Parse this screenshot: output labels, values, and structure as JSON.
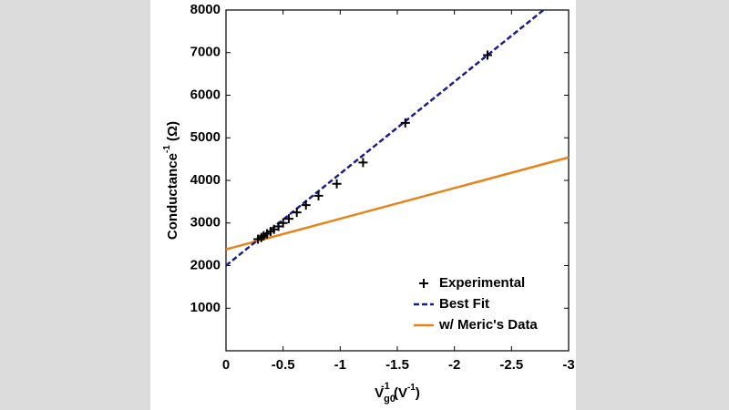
{
  "chart_data": {
    "type": "scatter",
    "xlabel": {
      "main": "V",
      "sub": "g0",
      "sup": "-1",
      "unit_open": " (V",
      "unit_sup": "-1",
      "unit_close": ")"
    },
    "ylabel": {
      "main": "Conductance",
      "sup": "-1",
      "unit": " (Ω)"
    },
    "xlim": [
      0,
      -3
    ],
    "xticks": [
      0,
      -0.5,
      -1,
      -1.5,
      -2,
      -2.5,
      -3
    ],
    "ylim": [
      0,
      8000
    ],
    "yticks": [
      1000,
      2000,
      3000,
      4000,
      5000,
      6000,
      7000,
      8000
    ],
    "legend": "lower right",
    "series": [
      {
        "name": "Experimental",
        "color": "#000000",
        "style": "plus",
        "x": [
          -0.28,
          -0.31,
          -0.33,
          -0.36,
          -0.39,
          -0.42,
          -0.46,
          -0.5,
          -0.55,
          -0.62,
          -0.7,
          -0.81,
          -0.97,
          -1.2,
          -1.57,
          -2.29
        ],
        "values": [
          2620,
          2660,
          2700,
          2750,
          2800,
          2850,
          2920,
          3000,
          3100,
          3250,
          3420,
          3640,
          3920,
          4420,
          5350,
          6940
        ]
      },
      {
        "name": "Best Fit",
        "color": "#1c1c8f",
        "style": "dashed",
        "x": [
          0,
          -2.78
        ],
        "values": [
          2000,
          8000
        ]
      },
      {
        "name": "w/ Meric's Data",
        "color": "#e8821a",
        "style": "solid",
        "x": [
          0,
          -3
        ],
        "values": [
          2380,
          4540
        ]
      }
    ]
  }
}
